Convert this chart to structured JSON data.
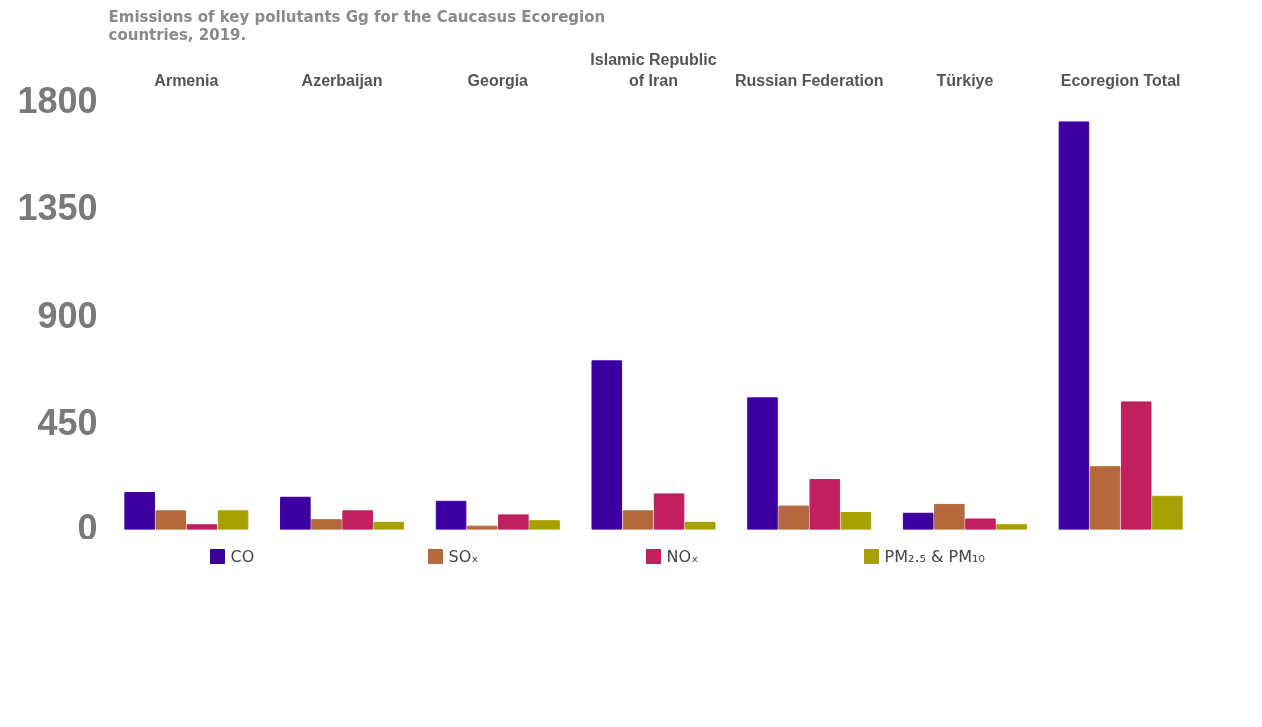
{
  "chart_data": {
    "type": "bar",
    "title": "Emissions of key pollutants Gg for the Caucasus Ecoregion countries, 2019.",
    "categories": [
      "Armenia",
      "Azerbaijan",
      "Georgia",
      "Islamic Republic of Iran",
      "Russian Federation",
      "Türkiye",
      "Ecoregion Total"
    ],
    "series": [
      {
        "name": "CO",
        "color": "#3d00a0",
        "values": [
          155,
          135,
          118,
          706,
          551,
          68,
          1706
        ]
      },
      {
        "name": "SOₓ",
        "color": "#b5693c",
        "values": [
          78,
          41,
          14,
          78,
          98,
          105,
          263
        ]
      },
      {
        "name": "NOₓ",
        "color": "#c11f5e",
        "values": [
          20,
          78,
          61,
          149,
          209,
          44,
          534
        ]
      },
      {
        "name": "PM₂.₅ & PM₁₀",
        "color": "#a6a000",
        "values": [
          78,
          30,
          37,
          30,
          71,
          20,
          139
        ]
      }
    ],
    "ylim": [
      0,
      1800
    ],
    "yticks": [
      0,
      450,
      900,
      1350,
      1800
    ],
    "grid": false,
    "legend": "bottom"
  }
}
